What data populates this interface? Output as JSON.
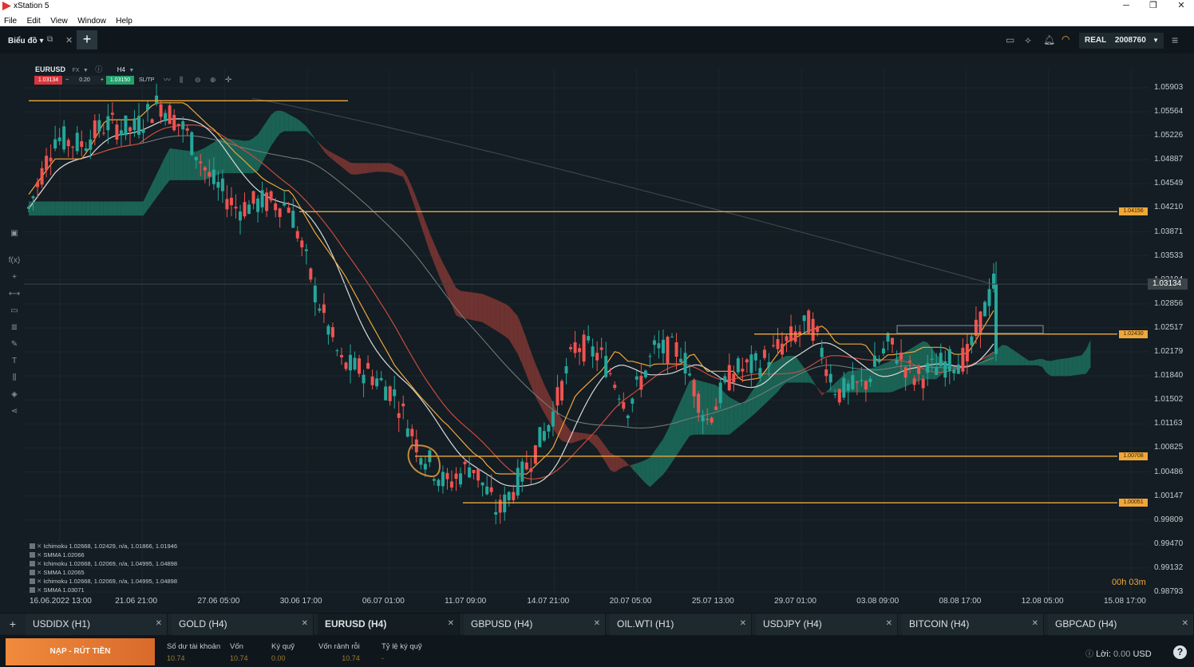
{
  "window": {
    "title": "xStation 5",
    "minimize": "─",
    "restore": "❐",
    "close": "✕"
  },
  "menu": [
    "File",
    "Edit",
    "View",
    "Window",
    "Help"
  ],
  "toolbar": {
    "title": "Biểu đồ",
    "account_type": "REAL",
    "account_number": "2008760"
  },
  "chart_header": {
    "symbol": "EURUSD",
    "market": "FX",
    "timeframe": "H4",
    "sell_price": "1.03134",
    "volume": "0.20",
    "buy_price": "1.03150",
    "sltp_label": "SL/TP",
    "minus": "−",
    "plus": "+"
  },
  "price_axis": [
    "1.05903",
    "1.05564",
    "1.05226",
    "1.04887",
    "1.04549",
    "1.04210",
    "1.03871",
    "1.03533",
    "1.03194",
    "1.02856",
    "1.02517",
    "1.02179",
    "1.01840",
    "1.01502",
    "1.01163",
    "1.00825",
    "1.00486",
    "1.00147",
    "0.99809",
    "0.99470",
    "0.99132",
    "0.98793"
  ],
  "current_price": "1.03134",
  "level_tags": [
    "1.04156",
    "1.02430",
    "1.00708",
    "1.00051"
  ],
  "date_axis": [
    "16.06.2022 13:00",
    "21.06 21:00",
    "27.06 05:00",
    "30.06 17:00",
    "06.07 01:00",
    "11.07 09:00",
    "14.07 21:00",
    "20.07 05:00",
    "25.07 13:00",
    "29.07 01:00",
    "03.08 09:00",
    "08.08 17:00",
    "12.08 05:00",
    "15.08 17:00"
  ],
  "countdown": "00h 03m",
  "indicators": [
    "Ichimoku 1.02668, 1.02429, n/a, 1.01866, 1.01946",
    "SMMA 1.02066",
    "Ichimoku 1.02668, 1.02069, n/a, 1.04995, 1.04898",
    "SMMA 1.02065",
    "Ichimoku 1.02668, 1.02069, n/a, 1.04995, 1.04898",
    "SMMA 1.03071"
  ],
  "tabs": [
    {
      "label": "USDIDX (H1)",
      "active": false
    },
    {
      "label": "GOLD (H4)",
      "active": false
    },
    {
      "label": "EURUSD (H4)",
      "active": true
    },
    {
      "label": "GBPUSD (H4)",
      "active": false
    },
    {
      "label": "OIL.WTI (H1)",
      "active": false
    },
    {
      "label": "USDJPY (H4)",
      "active": false
    },
    {
      "label": "BITCOIN (H4)",
      "active": false
    },
    {
      "label": "GBPCAD (H4)",
      "active": false
    }
  ],
  "bottom": {
    "deposit_label": "NẠP - RÚT TIỀN",
    "balance_label": "Số dư tài khoản",
    "balance": "10.74",
    "equity_label": "Vốn",
    "equity": "10.74",
    "margin_label": "Ký quỹ",
    "margin": "0.00",
    "free_margin_label": "Vốn rảnh rỗi",
    "free_margin": "10.74",
    "margin_level_label": "Tỷ lệ ký quỹ",
    "margin_level": "-",
    "profit_label": "Lời:",
    "profit": "0.00",
    "currency": "USD",
    "help": "?"
  },
  "colors": {
    "bull": "#26a69a",
    "bear": "#ef5350",
    "level": "#f0a73a",
    "cloud_bull": "#1e7a66",
    "cloud_bear": "#8e3a36"
  },
  "chart_data": {
    "type": "candlestick",
    "symbol": "EURUSD",
    "timeframe": "H4",
    "ylim": [
      0.98793,
      1.05903
    ],
    "horizontal_levels": [
      1.04156,
      1.0243,
      1.00708,
      1.00051
    ],
    "current_price": 1.03134,
    "path": [
      [
        "16.06",
        1.042
      ],
      [
        "17.06",
        1.052
      ],
      [
        "20.06",
        1.051
      ],
      [
        "21.06",
        1.054
      ],
      [
        "23.06",
        1.053
      ],
      [
        "27.06",
        1.057
      ],
      [
        "28.06",
        1.053
      ],
      [
        "29.06",
        1.046
      ],
      [
        "30.06",
        1.042
      ],
      [
        "01.07",
        1.043
      ],
      [
        "04.07",
        1.0425
      ],
      [
        "05.07",
        1.03
      ],
      [
        "06.07",
        1.02
      ],
      [
        "07.07",
        1.019
      ],
      [
        "08.07",
        1.016
      ],
      [
        "11.07",
        1.008
      ],
      [
        "12.07",
        1.003
      ],
      [
        "13.07",
        1.006
      ],
      [
        "14.07",
        0.999
      ],
      [
        "15.07",
        1.005
      ],
      [
        "18.07",
        1.012
      ],
      [
        "19.07",
        1.023
      ],
      [
        "20.07",
        1.021
      ],
      [
        "21.07",
        1.014
      ],
      [
        "22.07",
        1.022
      ],
      [
        "25.07",
        1.022
      ],
      [
        "26.07",
        1.012
      ],
      [
        "27.07",
        1.019
      ],
      [
        "28.07",
        1.02
      ],
      [
        "29.07",
        1.023
      ],
      [
        "01.08",
        1.026
      ],
      [
        "02.08",
        1.016
      ],
      [
        "03.08",
        1.017
      ],
      [
        "04.08",
        1.023
      ],
      [
        "05.08",
        1.018
      ],
      [
        "08.08",
        1.02
      ],
      [
        "09.08",
        1.021
      ],
      [
        "10.08",
        1.0313
      ]
    ]
  }
}
